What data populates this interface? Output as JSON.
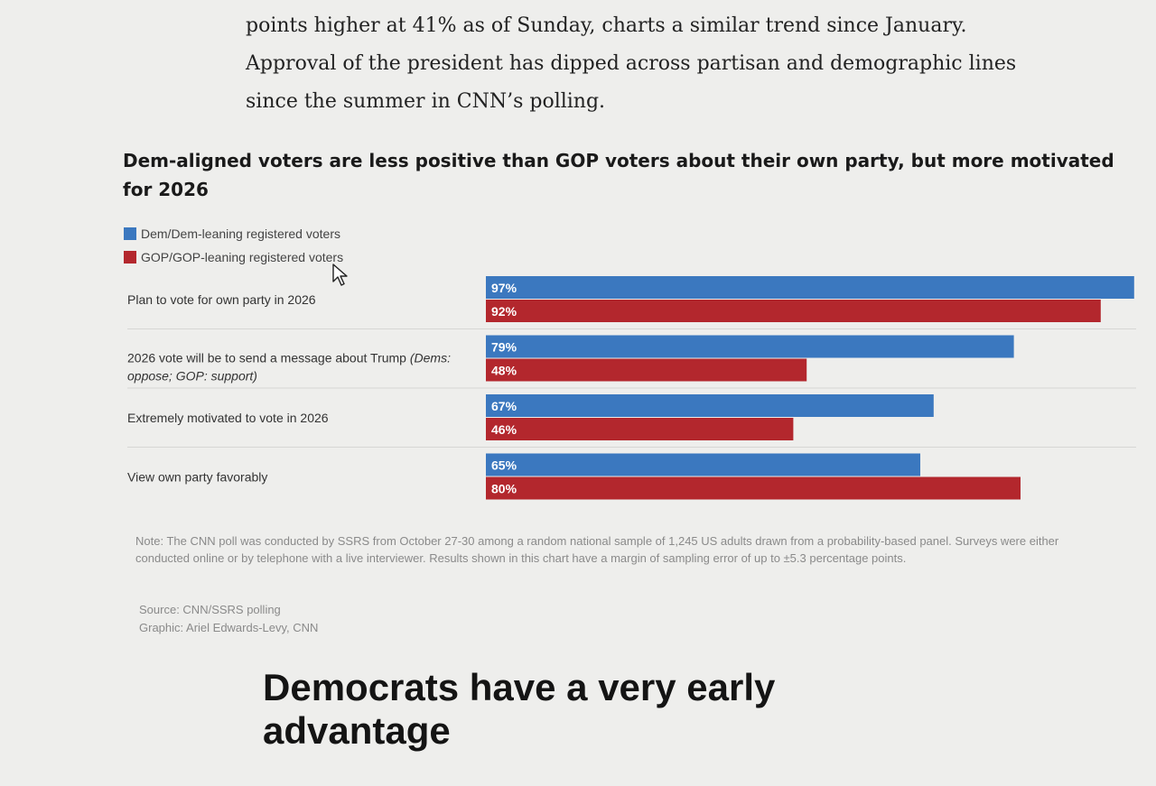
{
  "article": {
    "intro_lines": [
      "points higher at 41% as of Sunday, charts a similar trend since January.",
      "Approval of the president has dipped across partisan and demographic lines",
      "since the summer in CNN’s polling."
    ],
    "next_heading": "Democrats have a very early advantage"
  },
  "chart_data": {
    "type": "bar",
    "orientation": "horizontal",
    "title": "Dem-aligned voters are less positive than GOP voters about their own party, but more motivated for 2026",
    "categories": [
      "Plan to vote for own party in 2026",
      "2026 vote will be to send a message about Trump",
      "Extremely motivated to vote in 2026",
      "View own party favorably"
    ],
    "category_notes": [
      "",
      "(Dems: oppose; GOP: support)",
      "",
      ""
    ],
    "series": [
      {
        "name": "Dem/Dem-leaning registered voters",
        "color": "#3b78bf",
        "values": [
          97,
          79,
          67,
          65
        ]
      },
      {
        "name": "GOP/GOP-leaning registered voters",
        "color": "#b3272d",
        "values": [
          92,
          48,
          46,
          80
        ]
      }
    ],
    "value_suffix": "%",
    "xlim": [
      0,
      100
    ],
    "legend_position": "top-left",
    "grid": false,
    "note": "Note: The CNN poll was conducted by SSRS from October 27-30 among a random national sample of 1,245 US adults drawn from a probability-based panel. Surveys were either conducted online or by telephone with a live interviewer. Results shown in this chart have a margin of sampling error of up to ±5.3 percentage points.",
    "source": "Source: CNN/SSRS polling",
    "graphic": "Graphic: Ariel Edwards-Levy, CNN"
  }
}
